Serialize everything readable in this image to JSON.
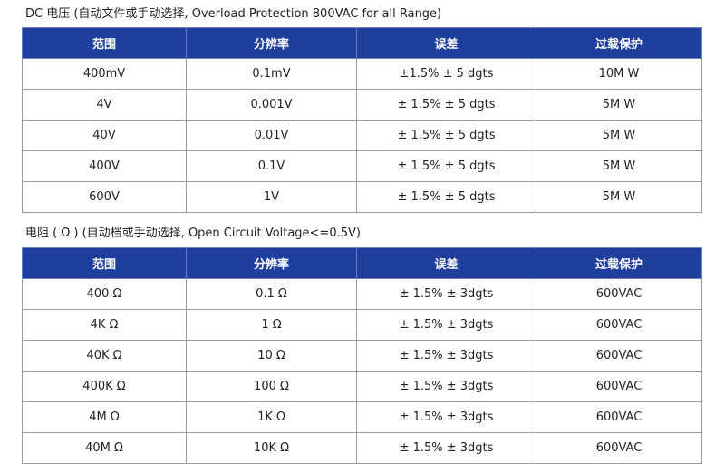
{
  "sections": [
    {
      "title": "DC 电压 (自动文件或手动选择, Overload Protection 800VAC for all Range)",
      "headers": [
        "范围",
        "分辨率",
        "误差",
        "过载保护"
      ],
      "rows": [
        [
          "400mV",
          "0.1mV",
          "±1.5% ± 5 dgts",
          "10M W"
        ],
        [
          "4V",
          "0.001V",
          "± 1.5% ± 5 dgts",
          "5M W"
        ],
        [
          "40V",
          "0.01V",
          "± 1.5% ± 5 dgts",
          "5M W"
        ],
        [
          "400V",
          "0.1V",
          "± 1.5% ± 5 dgts",
          "5M W"
        ],
        [
          "600V",
          "1V",
          "± 1.5% ± 5 dgts",
          "5M W"
        ]
      ]
    },
    {
      "title": "电阻 ( Ω ) (自动档或手动选择, Open Circuit Voltage<=0.5V)",
      "headers": [
        "范围",
        "分辨率",
        "误差",
        "过载保护"
      ],
      "rows": [
        [
          "400 Ω",
          "0.1 Ω",
          "± 1.5% ± 3dgts",
          "600VAC"
        ],
        [
          "4K Ω",
          "1 Ω",
          "± 1.5% ± 3dgts",
          "600VAC"
        ],
        [
          "40K Ω",
          "10 Ω",
          "± 1.5% ± 3dgts",
          "600VAC"
        ],
        [
          "400K Ω",
          "100 Ω",
          "± 1.5% ± 3dgts",
          "600VAC"
        ],
        [
          "4M Ω",
          "1K Ω",
          "± 1.5% ± 3dgts",
          "600VAC"
        ],
        [
          "40M Ω",
          "10K Ω",
          "± 1.5% ± 3dgts",
          "600VAC"
        ]
      ]
    }
  ]
}
